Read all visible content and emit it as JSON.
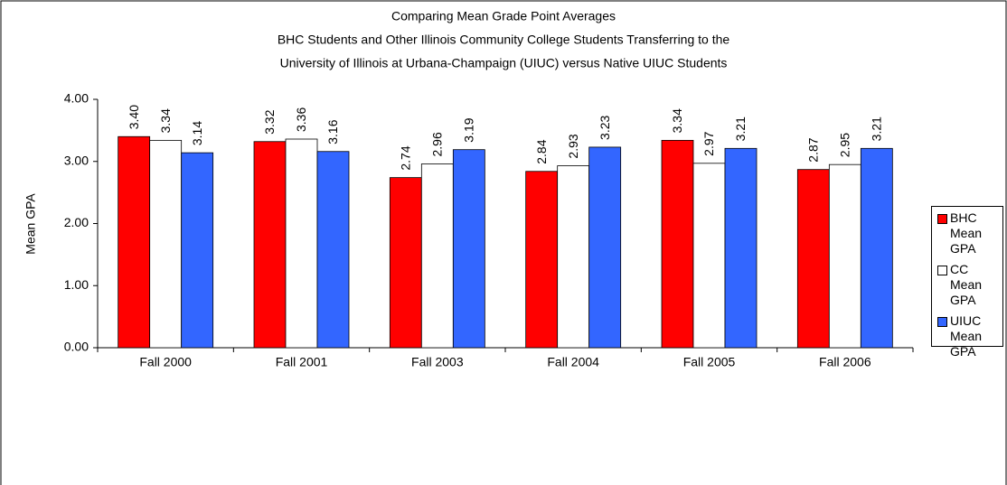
{
  "chart_data": {
    "type": "bar",
    "title": [
      "Comparing Mean Grade Point Averages",
      "BHC Students and Other Illinois Community College Students Transferring to the",
      "University of Illinois at Urbana-Champaign (UIUC)  versus Native UIUC Students"
    ],
    "ylabel": "Mean GPA",
    "categories": [
      "Fall 2000",
      "Fall 2001",
      "Fall 2003",
      "Fall 2004",
      "Fall 2005",
      "Fall 2006"
    ],
    "series": [
      {
        "name": "BHC Mean GPA",
        "color": "#ff0000",
        "values": [
          3.4,
          3.32,
          2.74,
          2.84,
          3.34,
          2.87
        ],
        "value_labels": [
          "3.40",
          "3.32",
          "2.74",
          "2.84",
          "3.34",
          "2.87"
        ]
      },
      {
        "name": "CC Mean GPA",
        "color": "#ffffff",
        "values": [
          3.34,
          3.36,
          2.96,
          2.93,
          2.97,
          2.95
        ],
        "value_labels": [
          "3.34",
          "3.36",
          "2.96",
          "2.93",
          "2.97",
          "2.95"
        ]
      },
      {
        "name": "UIUC Mean GPA",
        "color": "#3366ff",
        "values": [
          3.14,
          3.16,
          3.19,
          3.23,
          3.21,
          3.21
        ],
        "value_labels": [
          "3.14",
          "3.16",
          "3.19",
          "3.23",
          "3.21",
          "3.21"
        ]
      }
    ],
    "ylim": [
      0,
      4
    ],
    "yticks": [
      {
        "value": 0,
        "label": "0.00"
      },
      {
        "value": 1,
        "label": "1.00"
      },
      {
        "value": 2,
        "label": "2.00"
      },
      {
        "value": 3,
        "label": "3.00"
      },
      {
        "value": 4,
        "label": "4.00"
      }
    ],
    "grid": false,
    "legend": "right"
  }
}
